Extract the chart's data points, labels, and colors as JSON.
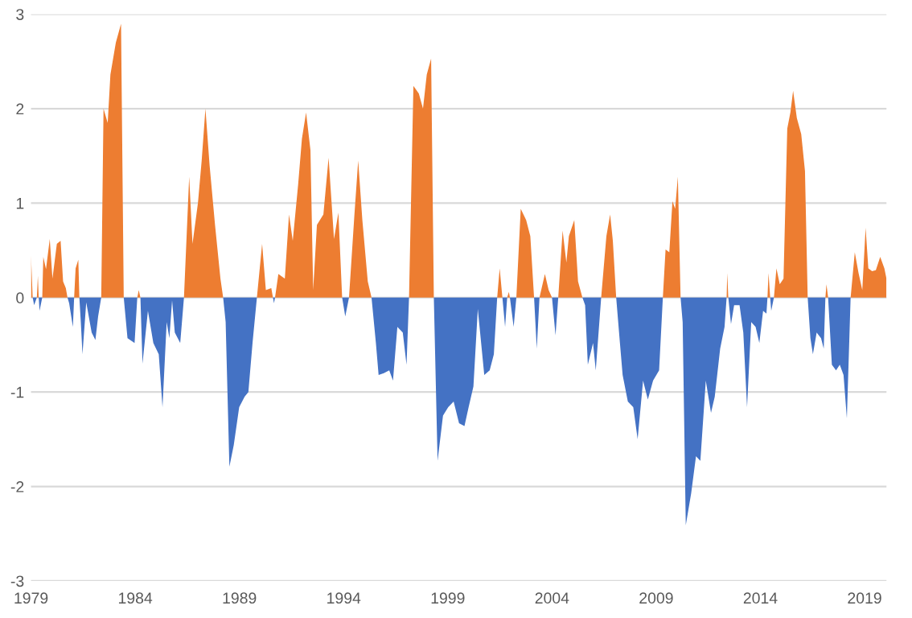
{
  "chart_data": {
    "type": "area",
    "xlim": [
      1979,
      2020.05
    ],
    "xticks": [
      1979,
      1984,
      1989,
      1994,
      1999,
      2004,
      2009,
      2014,
      2019
    ],
    "ylim": [
      -3,
      3
    ],
    "yticks": [
      -3,
      -2,
      -1,
      0,
      1,
      2,
      3
    ],
    "grid": "y",
    "series": [
      {
        "color": "#ed7d31",
        "x": [
          1979.0,
          1979.08,
          1979.28,
          1979.33,
          1979.37,
          1979.54,
          1979.59,
          1979.72,
          1979.9,
          1980.03,
          1980.24,
          1980.42,
          1980.54,
          1980.67,
          1980.75,
          1981.07,
          1981.14,
          1981.27,
          1981.32,
          1982.37,
          1982.48,
          1982.68,
          1982.81,
          1983.07,
          1983.32,
          1983.45,
          1984.1,
          1984.17,
          1984.25,
          1986.34,
          1986.59,
          1986.75,
          1987.01,
          1987.19,
          1987.37,
          1987.57,
          1987.83,
          1988.09,
          1988.22,
          1989.84,
          1990.09,
          1990.27,
          1990.53,
          1990.61,
          1990.71,
          1990.87,
          1991.18,
          1991.38,
          1991.56,
          1991.82,
          1992.0,
          1992.2,
          1992.41,
          1992.54,
          1992.72,
          1993.03,
          1993.28,
          1993.54,
          1993.75,
          1993.93,
          1994.26,
          1994.52,
          1994.7,
          1994.9,
          1995.16,
          1995.34,
          1997.14,
          1997.35,
          1997.61,
          1997.81,
          1997.99,
          1998.2,
          1998.33,
          2001.37,
          2001.49,
          2001.62,
          2001.85,
          2001.93,
          2001.98,
          2002.29,
          2002.5,
          2002.76,
          2002.96,
          2003.14,
          2003.4,
          2003.66,
          2003.84,
          2004.0,
          2004.3,
          2004.51,
          2004.69,
          2004.81,
          2005.07,
          2005.25,
          2005.46,
          2006.36,
          2006.61,
          2006.79,
          2006.92,
          2007.08,
          2009.32,
          2009.45,
          2009.63,
          2009.78,
          2009.91,
          2010.04,
          2010.17,
          2012.38,
          2012.41,
          2012.46,
          2014.34,
          2014.39,
          2014.47,
          2014.65,
          2014.77,
          2014.93,
          2015.11,
          2015.29,
          2015.44,
          2015.57,
          2015.75,
          2015.96,
          2016.14,
          2016.27,
          2017.12,
          2017.17,
          2017.25,
          2018.33,
          2018.53,
          2018.71,
          2018.89,
          2019.05,
          2019.18,
          2019.36,
          2019.54,
          2019.75,
          2019.95,
          2020.05
        ],
        "values": [
          0.45,
          0,
          0,
          0.23,
          0,
          0,
          0.43,
          0.3,
          0.62,
          0.2,
          0.57,
          0.6,
          0.17,
          0.1,
          0,
          0,
          0.31,
          0.4,
          0,
          0,
          2.0,
          1.85,
          2.36,
          2.7,
          2.9,
          0,
          0,
          0.08,
          0,
          0,
          1.28,
          0.57,
          1.0,
          1.45,
          2.0,
          1.4,
          0.77,
          0.2,
          0,
          0,
          0.57,
          0.08,
          0.1,
          0,
          0,
          0.25,
          0.2,
          0.88,
          0.6,
          1.2,
          1.68,
          1.96,
          1.56,
          0.08,
          0.77,
          0.88,
          1.48,
          0.62,
          0.9,
          0,
          0,
          0.88,
          1.45,
          0.82,
          0.17,
          0,
          0,
          2.24,
          2.16,
          2.0,
          2.36,
          2.53,
          0,
          0,
          0.31,
          0,
          0,
          0.06,
          0,
          0,
          0.94,
          0.82,
          0.65,
          0,
          0,
          0.25,
          0.08,
          0,
          0,
          0.71,
          0.37,
          0.65,
          0.82,
          0.17,
          0,
          0,
          0.65,
          0.88,
          0.6,
          0,
          0,
          0.51,
          0.48,
          1.02,
          0.94,
          1.28,
          0,
          0,
          0.26,
          0,
          0,
          0.26,
          0,
          0,
          0.31,
          0.14,
          0.2,
          1.79,
          1.96,
          2.19,
          1.9,
          1.73,
          1.34,
          0,
          0,
          0.14,
          0,
          0,
          0.48,
          0.26,
          0.08,
          0.74,
          0.31,
          0.28,
          0.29,
          0.43,
          0.31,
          0.2
        ]
      },
      {
        "color": "#4472c4",
        "x": [
          1979.08,
          1979.15,
          1979.28,
          1979.37,
          1979.41,
          1979.54,
          1980.75,
          1980.83,
          1981.01,
          1981.07,
          1981.32,
          1981.39,
          1981.47,
          1981.65,
          1981.91,
          1982.09,
          1982.22,
          1982.37,
          1983.45,
          1983.63,
          1983.97,
          1984.1,
          1984.25,
          1984.35,
          1984.61,
          1984.87,
          1985.13,
          1985.31,
          1985.51,
          1985.64,
          1985.77,
          1985.9,
          1986.16,
          1986.34,
          1988.22,
          1988.34,
          1988.52,
          1988.73,
          1988.99,
          1989.25,
          1989.43,
          1989.63,
          1989.84,
          1990.61,
          1990.66,
          1990.71,
          1993.93,
          1994.08,
          1994.26,
          1995.34,
          1995.55,
          1995.68,
          1995.93,
          1996.19,
          1996.37,
          1996.58,
          1996.84,
          1997.02,
          1997.14,
          1998.33,
          1998.51,
          1998.77,
          1999.02,
          1999.28,
          1999.54,
          1999.8,
          2000.0,
          2000.23,
          2000.44,
          2000.75,
          2001.01,
          2001.21,
          2001.37,
          2001.62,
          2001.75,
          2001.85,
          2001.98,
          2002.16,
          2002.29,
          2003.14,
          2003.27,
          2003.4,
          2004.0,
          2004.17,
          2004.3,
          2005.46,
          2005.59,
          2005.72,
          2005.97,
          2006.1,
          2006.36,
          2007.08,
          2007.26,
          2007.39,
          2007.64,
          2007.9,
          2008.11,
          2008.37,
          2008.6,
          2008.85,
          2009.14,
          2009.32,
          2010.17,
          2010.27,
          2010.42,
          2010.68,
          2010.91,
          2011.12,
          2011.38,
          2011.63,
          2011.81,
          2012.07,
          2012.28,
          2012.38,
          2012.46,
          2012.59,
          2012.74,
          2013.0,
          2013.18,
          2013.36,
          2013.56,
          2013.77,
          2013.95,
          2014.13,
          2014.29,
          2014.34,
          2014.47,
          2014.52,
          2014.65,
          2016.27,
          2016.4,
          2016.52,
          2016.7,
          2016.91,
          2017.04,
          2017.12,
          2017.25,
          2017.43,
          2017.63,
          2017.81,
          2017.99,
          2018.15,
          2018.33
        ],
        "values": [
          0,
          -0.08,
          0,
          0,
          -0.14,
          0,
          0,
          -0.06,
          -0.31,
          0,
          0,
          -0.26,
          -0.6,
          -0.05,
          -0.37,
          -0.45,
          -0.2,
          0,
          0,
          -0.43,
          -0.48,
          0,
          0,
          -0.7,
          -0.14,
          -0.48,
          -0.6,
          -1.16,
          -0.26,
          -0.43,
          -0.03,
          -0.37,
          -0.48,
          0,
          0,
          -0.26,
          -1.79,
          -1.56,
          -1.16,
          -1.05,
          -1.0,
          -0.48,
          0,
          0,
          -0.06,
          0,
          0,
          -0.2,
          0,
          0,
          -0.48,
          -0.82,
          -0.8,
          -0.77,
          -0.88,
          -0.31,
          -0.37,
          -0.71,
          0,
          0,
          -1.73,
          -1.25,
          -1.16,
          -1.1,
          -1.33,
          -1.36,
          -1.16,
          -0.94,
          -0.12,
          -0.82,
          -0.77,
          -0.6,
          0,
          0,
          -0.31,
          0,
          0,
          -0.31,
          0,
          0,
          -0.54,
          0,
          0,
          -0.4,
          0,
          0,
          -0.08,
          -0.71,
          -0.48,
          -0.77,
          0,
          0,
          -0.48,
          -0.82,
          -1.1,
          -1.16,
          -1.5,
          -0.88,
          -1.08,
          -0.88,
          -0.77,
          0,
          0,
          -0.26,
          -2.41,
          -2.07,
          -1.68,
          -1.73,
          -0.88,
          -1.22,
          -1.05,
          -0.54,
          -0.31,
          0,
          0,
          -0.28,
          -0.08,
          -0.08,
          -0.37,
          -1.16,
          -0.26,
          -0.31,
          -0.48,
          -0.14,
          -0.17,
          0,
          0,
          -0.14,
          0,
          0,
          -0.43,
          -0.6,
          -0.37,
          -0.43,
          -0.54,
          0,
          0,
          -0.71,
          -0.77,
          -0.71,
          -0.82,
          -1.28,
          0
        ]
      }
    ]
  }
}
